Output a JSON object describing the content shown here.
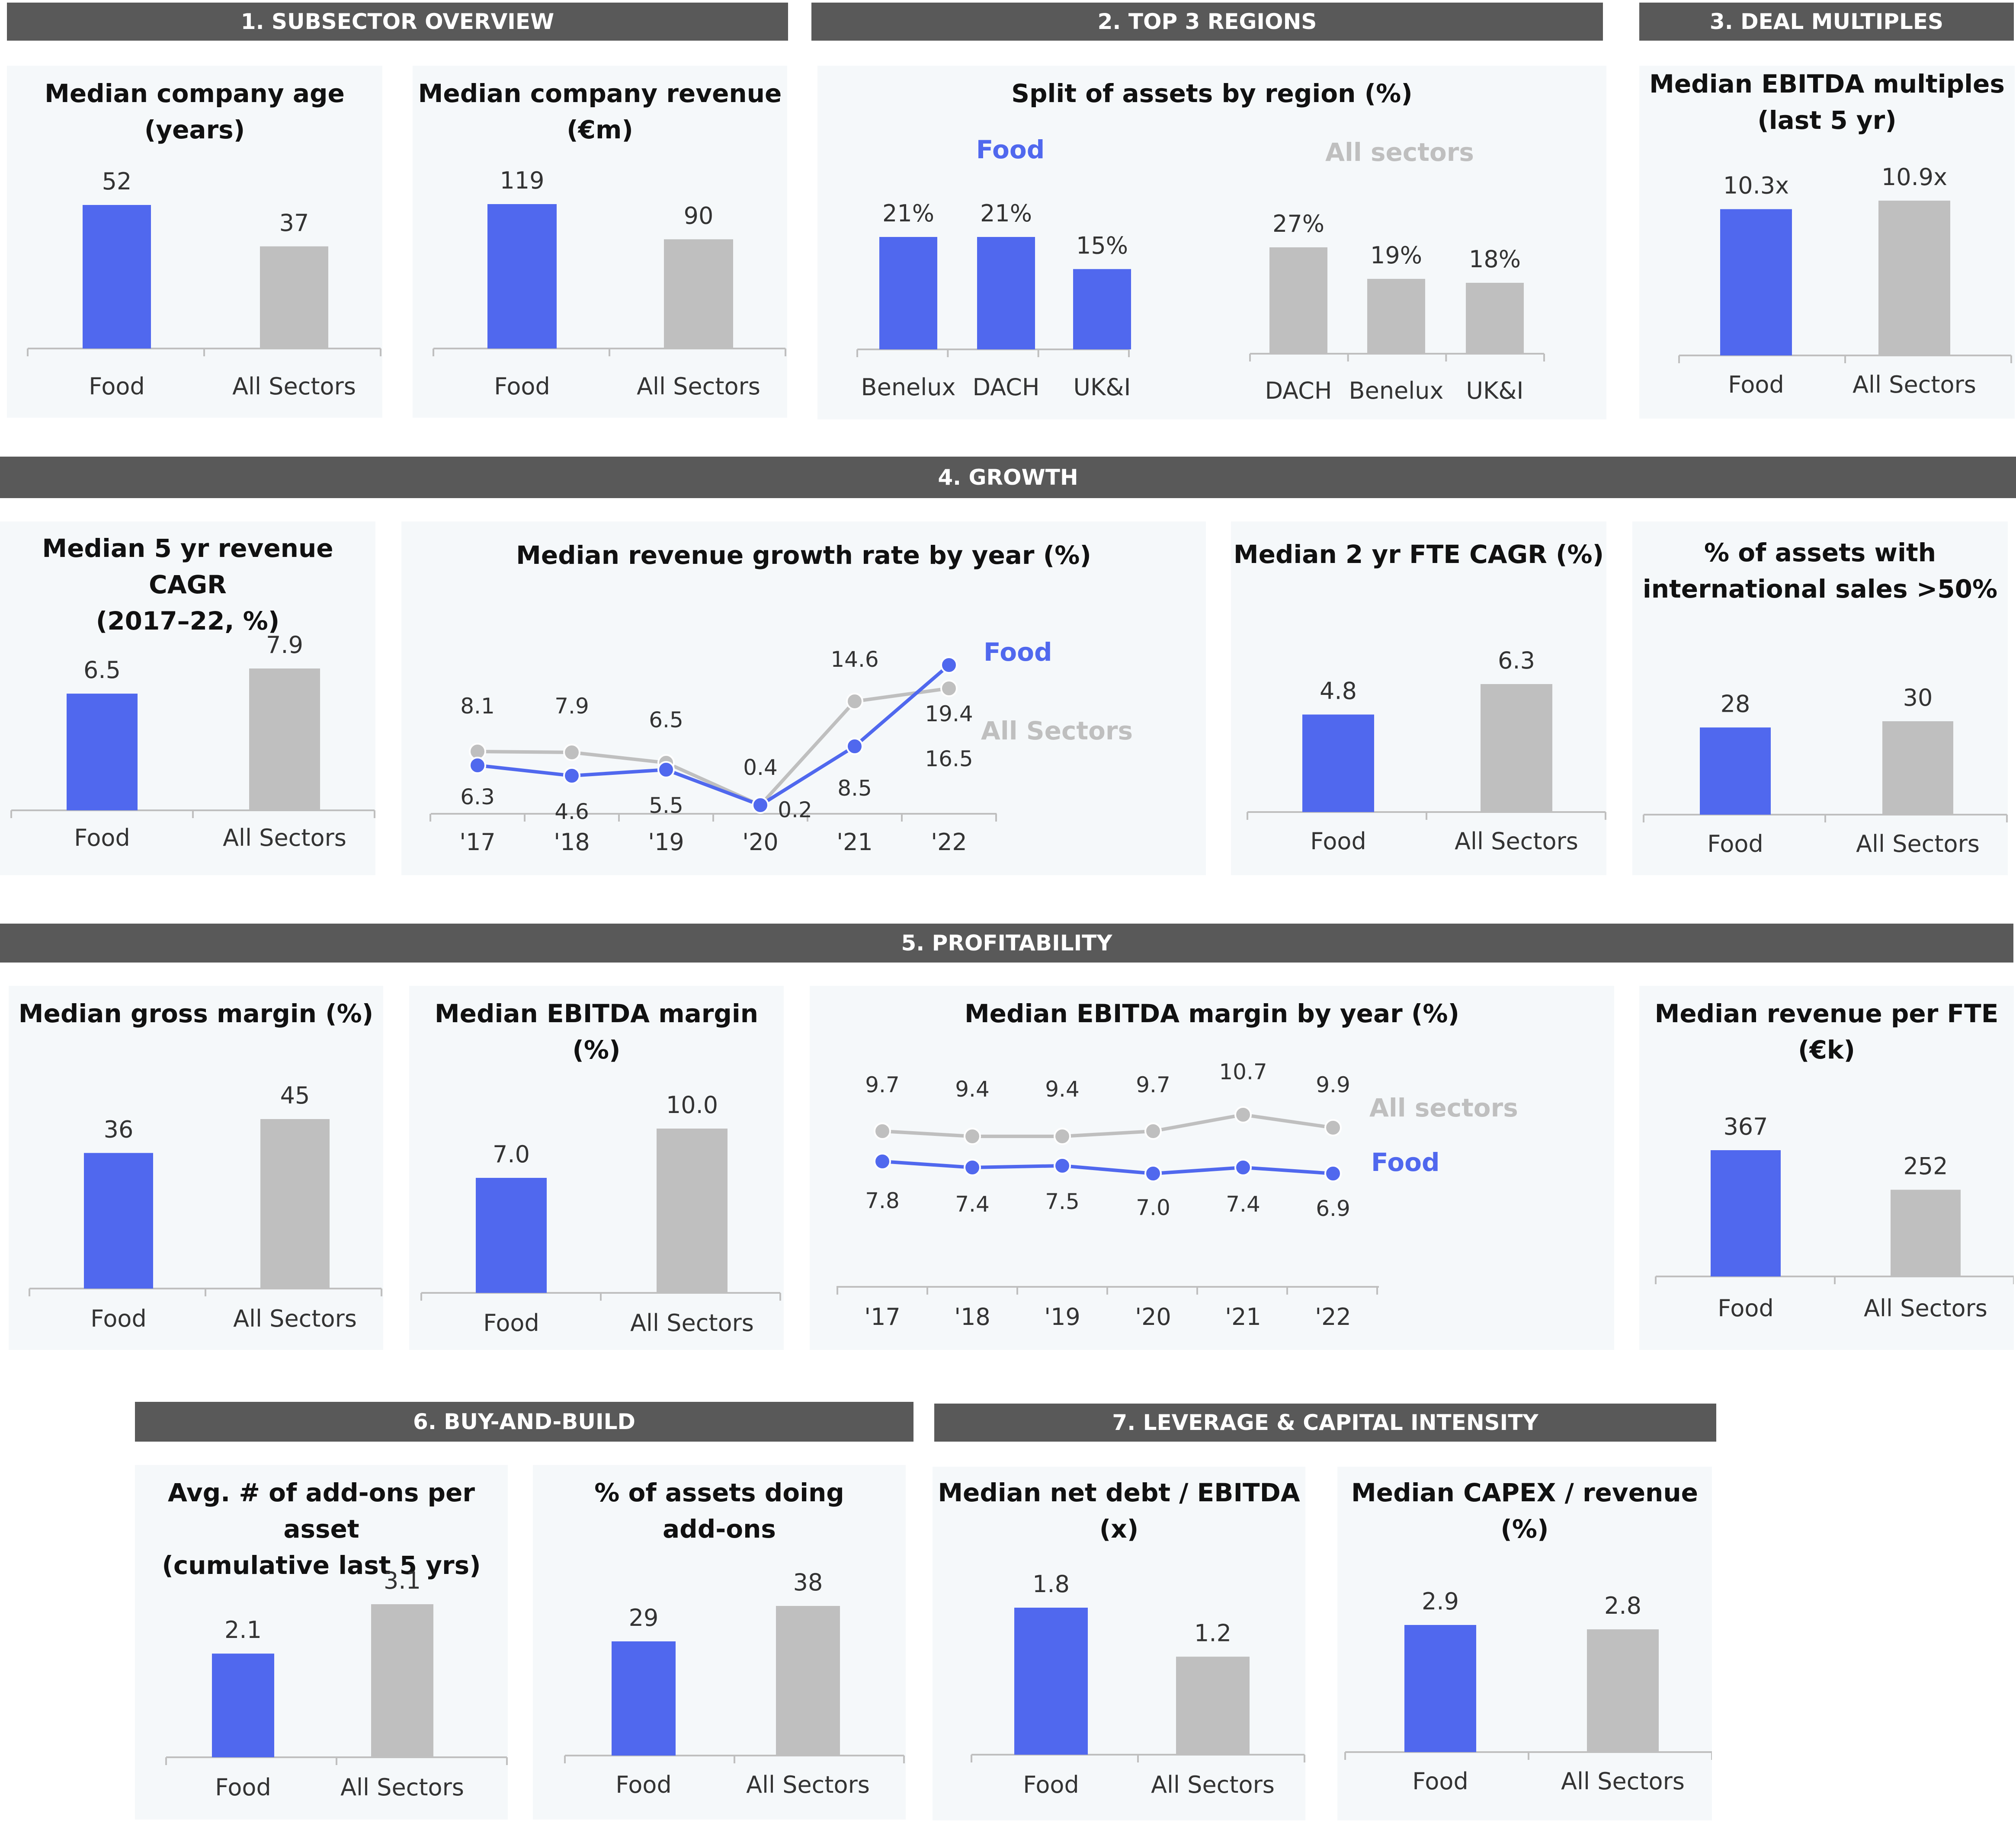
{
  "colors": {
    "food": "#5068ee",
    "all": "#bfbfbf",
    "header_bg": "#595959"
  },
  "sections": [
    {
      "label": "1. SUBSECTOR OVERVIEW"
    },
    {
      "label": "2. TOP 3 REGIONS"
    },
    {
      "label": "3. DEAL MULTIPLES"
    },
    {
      "label": "4. GROWTH"
    },
    {
      "label": "5.  PROFITABILITY"
    },
    {
      "label": "6. BUY-AND-BUILD"
    },
    {
      "label": "7. LEVERAGE & CAPITAL INTENSITY"
    }
  ],
  "panels": [
    {
      "title": [
        "Median company age",
        "(years)"
      ]
    },
    {
      "title": [
        "Median company revenue",
        "(€m)"
      ]
    },
    {
      "title": [
        "Split of assets by region (%)"
      ]
    },
    {
      "title": [
        "Median EBITDA multiples",
        "(last 5 yr)"
      ]
    },
    {
      "title": [
        "Median 5 yr revenue CAGR",
        "(2017–22, %)"
      ]
    },
    {
      "title": [
        "Median revenue growth rate by year (%)"
      ]
    },
    {
      "title": [
        "Median 2 yr FTE CAGR (%)"
      ]
    },
    {
      "title": [
        "% of assets with",
        "international sales >50%"
      ]
    },
    {
      "title": [
        "Median gross margin (%)"
      ]
    },
    {
      "title": [
        "Median EBITDA margin (%)"
      ]
    },
    {
      "title": [
        "Median EBITDA margin by year (%)"
      ]
    },
    {
      "title": [
        "Median revenue per FTE",
        "(€k)"
      ]
    },
    {
      "title": [
        "Avg. # of add-ons per asset",
        "(cumulative last 5 yrs)"
      ]
    },
    {
      "title": [
        "% of assets doing",
        "add-ons"
      ]
    },
    {
      "title": [
        "Median net debt / EBITDA",
        "(x)"
      ]
    },
    {
      "title": [
        "Median CAPEX / revenue",
        "(%)"
      ]
    }
  ],
  "chart_data": [
    {
      "type": "bar",
      "title": "Median company age (years)",
      "categories": [
        "Food",
        "All Sectors"
      ],
      "values": [
        52,
        37
      ],
      "labels": [
        "52",
        "37"
      ],
      "ylim": [
        0,
        52
      ]
    },
    {
      "type": "bar",
      "title": "Median company revenue (€m)",
      "categories": [
        "Food",
        "All Sectors"
      ],
      "values": [
        119,
        90
      ],
      "labels": [
        "119",
        "90"
      ],
      "ylim": [
        0,
        119
      ]
    },
    {
      "type": "bar",
      "title": "Split of assets by region (%)",
      "subtitle": "Food",
      "categories": [
        "Benelux",
        "DACH",
        "UK&I"
      ],
      "values": [
        21,
        21,
        15
      ],
      "labels": [
        "21%",
        "21%",
        "15%"
      ],
      "ylim": [
        0,
        21
      ]
    },
    {
      "type": "bar",
      "title": "Split of assets by region (%)",
      "subtitle": "All sectors",
      "categories": [
        "DACH",
        "Benelux",
        "UK&I"
      ],
      "values": [
        27,
        19,
        18
      ],
      "labels": [
        "27%",
        "19%",
        "18%"
      ],
      "ylim": [
        0,
        27
      ]
    },
    {
      "type": "bar",
      "title": "Median EBITDA multiples (last 5 yr)",
      "categories": [
        "Food",
        "All Sectors"
      ],
      "values": [
        10.3,
        10.9
      ],
      "labels": [
        "10.3x",
        "10.9x"
      ],
      "ylim": [
        0,
        10.9
      ]
    },
    {
      "type": "bar",
      "title": "Median 5 yr revenue CAGR (2017–22, %)",
      "categories": [
        "Food",
        "All Sectors"
      ],
      "values": [
        6.5,
        7.9
      ],
      "labels": [
        "6.5",
        "7.9"
      ],
      "ylim": [
        0,
        7.9
      ]
    },
    {
      "type": "line",
      "title": "Median revenue growth rate by year (%)",
      "x": [
        "'17",
        "'18",
        "'19",
        "'20",
        "'21",
        "'22"
      ],
      "series": [
        {
          "name": "Food",
          "values": [
            6.3,
            4.6,
            5.5,
            0.2,
            8.5,
            19.4
          ],
          "labels": [
            "6.3",
            "4.6",
            "5.5",
            "0.2",
            "8.5",
            "19.4"
          ]
        },
        {
          "name": "All Sectors",
          "values": [
            8.1,
            7.9,
            6.5,
            0.4,
            14.6,
            16.5
          ],
          "labels": [
            "8.1",
            "7.9",
            "6.5",
            "0.4",
            "14.6",
            "16.5"
          ]
        }
      ],
      "ylim": [
        0,
        19.4
      ]
    },
    {
      "type": "bar",
      "title": "Median 2 yr FTE CAGR (%)",
      "categories": [
        "Food",
        "All Sectors"
      ],
      "values": [
        4.8,
        6.3
      ],
      "labels": [
        "4.8",
        "6.3"
      ],
      "ylim": [
        0,
        6.3
      ]
    },
    {
      "type": "bar",
      "title": "% of assets with international sales >50%",
      "categories": [
        "Food",
        "All Sectors"
      ],
      "values": [
        28,
        30
      ],
      "labels": [
        "28",
        "30"
      ],
      "ylim": [
        0,
        30
      ]
    },
    {
      "type": "bar",
      "title": "Median gross margin (%)",
      "categories": [
        "Food",
        "All Sectors"
      ],
      "values": [
        36,
        45
      ],
      "labels": [
        "36",
        "45"
      ],
      "ylim": [
        0,
        45
      ]
    },
    {
      "type": "bar",
      "title": "Median EBITDA margin (%)",
      "categories": [
        "Food",
        "All Sectors"
      ],
      "values": [
        7.0,
        10.0
      ],
      "labels": [
        "7.0",
        "10.0"
      ],
      "ylim": [
        0,
        10
      ]
    },
    {
      "type": "line",
      "title": "Median EBITDA margin by year (%)",
      "x": [
        "'17",
        "'18",
        "'19",
        "'20",
        "'21",
        "'22"
      ],
      "series": [
        {
          "name": "All sectors",
          "values": [
            9.7,
            9.4,
            9.4,
            9.7,
            10.7,
            9.9
          ],
          "labels": [
            "9.7",
            "9.4",
            "9.4",
            "9.7",
            "10.7",
            "9.9"
          ]
        },
        {
          "name": "Food",
          "values": [
            7.8,
            7.4,
            7.5,
            7.0,
            7.4,
            6.9
          ],
          "labels": [
            "7.8",
            "7.4",
            "7.5",
            "7.0",
            "7.4",
            "6.9"
          ]
        }
      ],
      "ylim": [
        0,
        10.7
      ]
    },
    {
      "type": "bar",
      "title": "Median revenue per FTE (€k)",
      "categories": [
        "Food",
        "All Sectors"
      ],
      "values": [
        367,
        252
      ],
      "labels": [
        "367",
        "252"
      ],
      "ylim": [
        0,
        367
      ]
    },
    {
      "type": "bar",
      "title": "Avg. # of add-ons per asset (cumulative last 5 yrs)",
      "categories": [
        "Food",
        "All Sectors"
      ],
      "values": [
        2.1,
        3.1
      ],
      "labels": [
        "2.1",
        "3.1"
      ],
      "ylim": [
        0,
        3.1
      ]
    },
    {
      "type": "bar",
      "title": "% of assets doing add-ons",
      "categories": [
        "Food",
        "All Sectors"
      ],
      "values": [
        29,
        38
      ],
      "labels": [
        "29",
        "38"
      ],
      "ylim": [
        0,
        38
      ]
    },
    {
      "type": "bar",
      "title": "Median net debt / EBITDA (x)",
      "categories": [
        "Food",
        "All Sectors"
      ],
      "values": [
        1.8,
        1.2
      ],
      "labels": [
        "1.8",
        "1.2"
      ],
      "ylim": [
        0,
        1.8
      ]
    },
    {
      "type": "bar",
      "title": "Median CAPEX / revenue (%)",
      "categories": [
        "Food",
        "All Sectors"
      ],
      "values": [
        2.9,
        2.8
      ],
      "labels": [
        "2.9",
        "2.8"
      ],
      "ylim": [
        0,
        2.9
      ]
    }
  ]
}
